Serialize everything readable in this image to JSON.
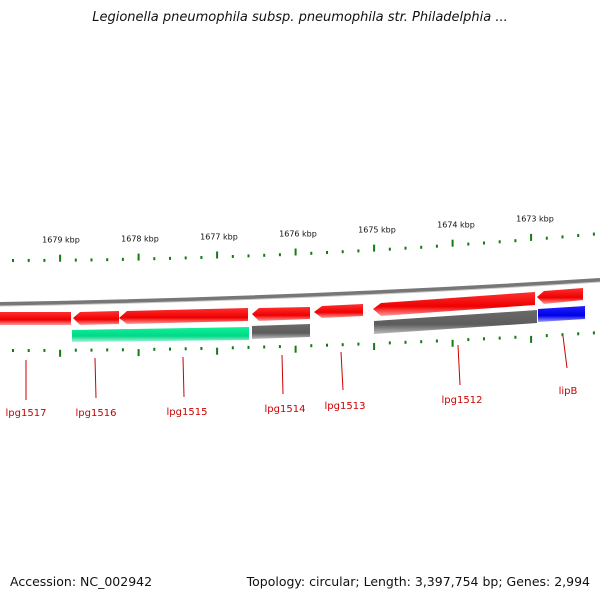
{
  "title": "Legionella pneumophila subsp. pneumophila str. Philadelphia ...",
  "footer": {
    "accession": "Accession: NC_002942",
    "topology": "Topology: circular; Length: 3,397,754 bp; Genes: 2,994"
  },
  "colors": {
    "backbone": "#7a7a7a",
    "red_gene": "#ee0000",
    "green_gene": "#00e08a",
    "gray_gene": "#666666",
    "blue_gene": "#0000ee",
    "tick": "#137b13",
    "label": "#cc0000"
  },
  "scale_labels": [
    "1679 kbp",
    "1678 kbp",
    "1677 kbp",
    "1676 kbp",
    "1675 kbp",
    "1674 kbp",
    "1673 kbp"
  ],
  "genes": [
    {
      "name": "lpg1517",
      "color": "red",
      "strand": "reverse"
    },
    {
      "name": "lpg1516",
      "color": "red",
      "strand": "reverse"
    },
    {
      "name": "lpg1515",
      "color": "red",
      "strand": "reverse"
    },
    {
      "name": "lpg1514",
      "color": "red",
      "strand": "reverse"
    },
    {
      "name": "lpg1513",
      "color": "red",
      "strand": "reverse"
    },
    {
      "name": "lpg1512",
      "color": "red",
      "strand": "reverse"
    },
    {
      "name": "lipB",
      "color": "red",
      "strand": "reverse"
    }
  ]
}
